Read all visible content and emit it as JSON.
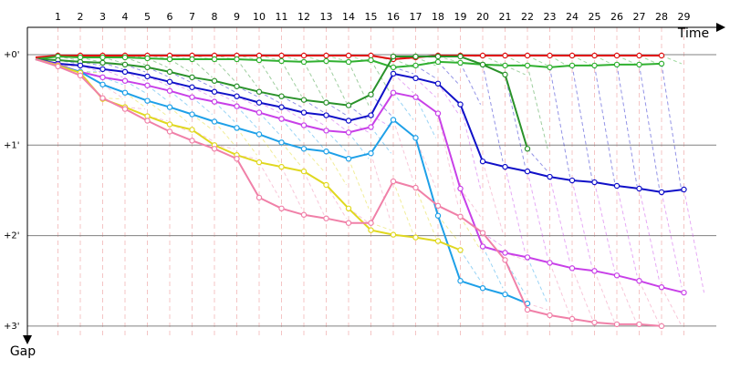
{
  "chart_data": {
    "type": "line",
    "xlabel": "Time",
    "ylabel": "Gap",
    "x_ticks": [
      "1",
      "2",
      "3",
      "4",
      "5",
      "6",
      "7",
      "8",
      "9",
      "10",
      "11",
      "12",
      "13",
      "14",
      "15",
      "16",
      "17",
      "18",
      "19",
      "20",
      "21",
      "22",
      "23",
      "24",
      "25",
      "26",
      "27",
      "28",
      "29"
    ],
    "y_ticks": [
      "+0'",
      "+1'",
      "+2'",
      "+3'"
    ],
    "ylim": [
      0,
      3
    ],
    "y_unit": "minutes",
    "xlim": [
      0,
      30
    ],
    "grid": true,
    "series": [
      {
        "color": "#e01010",
        "points": [
          [
            0,
            0.03
          ],
          [
            1,
            0.01
          ],
          [
            2,
            0.01
          ],
          [
            3,
            0.01
          ],
          [
            4,
            0.01
          ],
          [
            5,
            0.01
          ],
          [
            6,
            0.01
          ],
          [
            7,
            0.01
          ],
          [
            8,
            0.01
          ],
          [
            9,
            0.01
          ],
          [
            10,
            0.01
          ],
          [
            11,
            0.01
          ],
          [
            12,
            0.01
          ],
          [
            13,
            0.01
          ],
          [
            14,
            0.01
          ],
          [
            15,
            0.01
          ],
          [
            16,
            0.05
          ],
          [
            17,
            0.03
          ],
          [
            18,
            0.01
          ],
          [
            19,
            0.01
          ],
          [
            20,
            0.01
          ],
          [
            21,
            0.01
          ],
          [
            22,
            0.01
          ],
          [
            23,
            0.01
          ],
          [
            24,
            0.01
          ],
          [
            25,
            0.01
          ],
          [
            26,
            0.01
          ],
          [
            27,
            0.01
          ],
          [
            28,
            0.01
          ]
        ]
      },
      {
        "color": "#30b030",
        "points": [
          [
            0,
            0.05
          ],
          [
            1,
            0.02
          ],
          [
            2,
            0.03
          ],
          [
            3,
            0.03
          ],
          [
            4,
            0.03
          ],
          [
            5,
            0.04
          ],
          [
            6,
            0.05
          ],
          [
            7,
            0.05
          ],
          [
            8,
            0.05
          ],
          [
            9,
            0.05
          ],
          [
            10,
            0.06
          ],
          [
            11,
            0.07
          ],
          [
            12,
            0.08
          ],
          [
            13,
            0.07
          ],
          [
            14,
            0.08
          ],
          [
            15,
            0.06
          ],
          [
            16,
            0.14
          ],
          [
            17,
            0.12
          ],
          [
            18,
            0.08
          ],
          [
            19,
            0.09
          ],
          [
            20,
            0.11
          ],
          [
            21,
            0.12
          ],
          [
            22,
            0.12
          ],
          [
            23,
            0.14
          ],
          [
            24,
            0.12
          ],
          [
            25,
            0.12
          ],
          [
            26,
            0.11
          ],
          [
            27,
            0.11
          ],
          [
            28,
            0.1
          ]
        ]
      },
      {
        "color": "#2a922a",
        "points": [
          [
            0,
            0.05
          ],
          [
            1,
            0.06
          ],
          [
            2,
            0.08
          ],
          [
            3,
            0.09
          ],
          [
            4,
            0.11
          ],
          [
            5,
            0.14
          ],
          [
            6,
            0.19
          ],
          [
            7,
            0.25
          ],
          [
            8,
            0.29
          ],
          [
            9,
            0.35
          ],
          [
            10,
            0.41
          ],
          [
            11,
            0.46
          ],
          [
            12,
            0.5
          ],
          [
            13,
            0.53
          ],
          [
            14,
            0.56
          ],
          [
            15,
            0.44
          ],
          [
            16,
            0.02
          ],
          [
            17,
            0.02
          ],
          [
            18,
            0.02
          ],
          [
            19,
            0.02
          ],
          [
            20,
            0.11
          ],
          [
            21,
            0.22
          ],
          [
            22,
            1.04
          ]
        ]
      },
      {
        "color": "#1010c8",
        "points": [
          [
            0,
            0.05
          ],
          [
            1,
            0.1
          ],
          [
            2,
            0.12
          ],
          [
            3,
            0.16
          ],
          [
            4,
            0.19
          ],
          [
            5,
            0.24
          ],
          [
            6,
            0.3
          ],
          [
            7,
            0.36
          ],
          [
            8,
            0.41
          ],
          [
            9,
            0.46
          ],
          [
            10,
            0.53
          ],
          [
            11,
            0.58
          ],
          [
            12,
            0.64
          ],
          [
            13,
            0.67
          ],
          [
            14,
            0.73
          ],
          [
            15,
            0.67
          ],
          [
            16,
            0.21
          ],
          [
            17,
            0.26
          ],
          [
            18,
            0.32
          ],
          [
            19,
            0.55
          ],
          [
            20,
            1.18
          ],
          [
            21,
            1.24
          ],
          [
            22,
            1.29
          ],
          [
            23,
            1.35
          ],
          [
            24,
            1.39
          ],
          [
            25,
            1.41
          ],
          [
            26,
            1.45
          ],
          [
            27,
            1.48
          ],
          [
            28,
            1.52
          ],
          [
            29,
            1.49
          ]
        ]
      },
      {
        "color": "#c840e8",
        "points": [
          [
            0,
            0.05
          ],
          [
            1,
            0.11
          ],
          [
            2,
            0.19
          ],
          [
            3,
            0.25
          ],
          [
            4,
            0.29
          ],
          [
            5,
            0.34
          ],
          [
            6,
            0.4
          ],
          [
            7,
            0.47
          ],
          [
            8,
            0.52
          ],
          [
            9,
            0.57
          ],
          [
            10,
            0.64
          ],
          [
            11,
            0.71
          ],
          [
            12,
            0.78
          ],
          [
            13,
            0.84
          ],
          [
            14,
            0.86
          ],
          [
            15,
            0.8
          ],
          [
            16,
            0.42
          ],
          [
            17,
            0.47
          ],
          [
            18,
            0.65
          ],
          [
            19,
            1.48
          ],
          [
            20,
            2.12
          ],
          [
            21,
            2.19
          ],
          [
            22,
            2.24
          ],
          [
            23,
            2.3
          ],
          [
            24,
            2.36
          ],
          [
            25,
            2.39
          ],
          [
            26,
            2.44
          ],
          [
            27,
            2.5
          ],
          [
            28,
            2.57
          ],
          [
            29,
            2.63
          ]
        ]
      },
      {
        "color": "#1ea0e8",
        "points": [
          [
            0,
            0.05
          ],
          [
            1,
            0.12
          ],
          [
            2,
            0.19
          ],
          [
            3,
            0.33
          ],
          [
            4,
            0.42
          ],
          [
            5,
            0.51
          ],
          [
            6,
            0.58
          ],
          [
            7,
            0.66
          ],
          [
            8,
            0.74
          ],
          [
            9,
            0.81
          ],
          [
            10,
            0.88
          ],
          [
            11,
            0.97
          ],
          [
            12,
            1.04
          ],
          [
            13,
            1.07
          ],
          [
            14,
            1.15
          ],
          [
            15,
            1.09
          ],
          [
            16,
            0.72
          ],
          [
            17,
            0.92
          ],
          [
            18,
            1.78
          ],
          [
            19,
            2.5
          ],
          [
            20,
            2.58
          ],
          [
            21,
            2.65
          ],
          [
            22,
            2.75
          ]
        ]
      },
      {
        "color": "#e0d820",
        "points": [
          [
            0,
            0.05
          ],
          [
            1,
            0.12
          ],
          [
            2,
            0.2
          ],
          [
            3,
            0.49
          ],
          [
            4,
            0.58
          ],
          [
            5,
            0.68
          ],
          [
            6,
            0.77
          ],
          [
            7,
            0.83
          ],
          [
            8,
            1.0
          ],
          [
            9,
            1.11
          ],
          [
            10,
            1.19
          ],
          [
            11,
            1.24
          ],
          [
            12,
            1.29
          ],
          [
            13,
            1.44
          ],
          [
            14,
            1.7
          ],
          [
            15,
            1.94
          ],
          [
            16,
            1.99
          ],
          [
            17,
            2.02
          ],
          [
            18,
            2.06
          ],
          [
            19,
            2.16
          ]
        ]
      },
      {
        "color": "#f080a8",
        "points": [
          [
            0,
            0.05
          ],
          [
            1,
            0.13
          ],
          [
            2,
            0.23
          ],
          [
            3,
            0.48
          ],
          [
            4,
            0.6
          ],
          [
            5,
            0.73
          ],
          [
            6,
            0.85
          ],
          [
            7,
            0.95
          ],
          [
            8,
            1.04
          ],
          [
            9,
            1.15
          ],
          [
            10,
            1.58
          ],
          [
            11,
            1.7
          ],
          [
            12,
            1.77
          ],
          [
            13,
            1.81
          ],
          [
            14,
            1.86
          ],
          [
            15,
            1.86
          ],
          [
            16,
            1.4
          ],
          [
            17,
            1.47
          ],
          [
            18,
            1.67
          ],
          [
            19,
            1.79
          ],
          [
            20,
            1.97
          ],
          [
            21,
            2.27
          ],
          [
            22,
            2.82
          ],
          [
            23,
            2.88
          ],
          [
            24,
            2.92
          ],
          [
            25,
            2.96
          ],
          [
            26,
            2.98
          ],
          [
            27,
            2.98
          ],
          [
            28,
            3.0
          ]
        ]
      }
    ]
  }
}
